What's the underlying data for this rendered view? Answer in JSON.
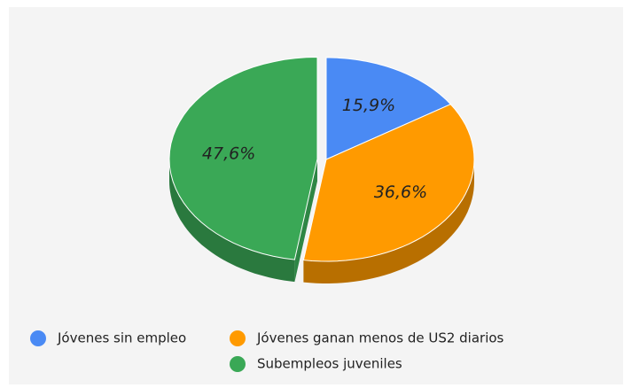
{
  "chart_data": {
    "type": "pie",
    "three_d": true,
    "categories": [
      "Jóvenes sin empleo",
      "Jóvenes ganan menos de US2 diarios",
      "Subempleos juveniles"
    ],
    "values": [
      15.9,
      36.6,
      47.6
    ],
    "value_labels": [
      "15,9%",
      "36,6%",
      "47,6%"
    ],
    "colors": [
      "#4a8af4",
      "#ff9a00",
      "#3aa856"
    ],
    "explode": [
      0,
      0,
      0.06
    ],
    "legend": "bottom"
  }
}
